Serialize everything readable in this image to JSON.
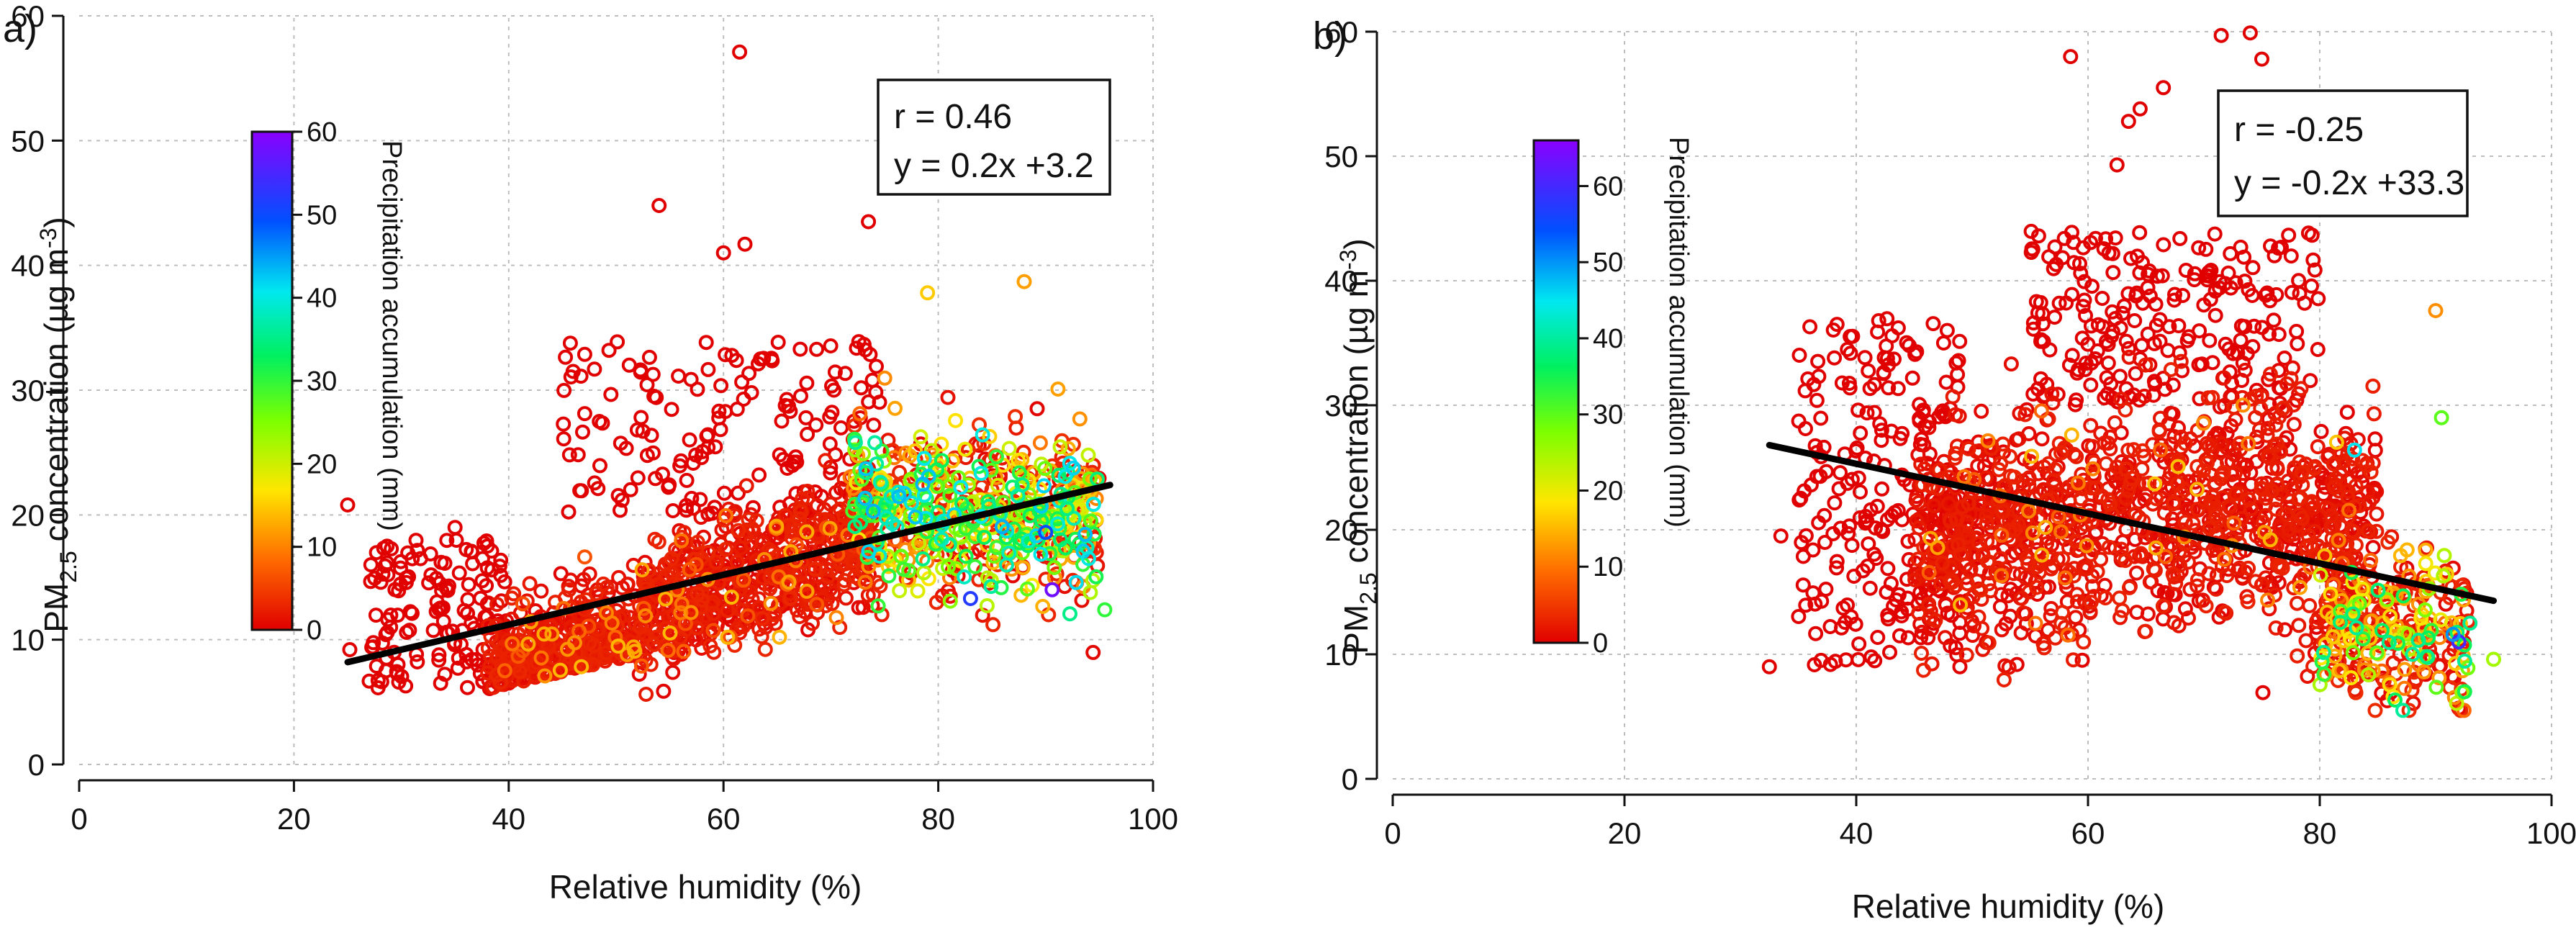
{
  "chart_data": [
    {
      "panel": "a)",
      "type": "scatter",
      "xlabel": "Relative humidity (%)",
      "ylabel_main": "PM",
      "ylabel_sub": "2.5",
      "ylabel_rest": " concentration (µg m",
      "ylabel_sup": "-3",
      "ylabel_end": ")",
      "xlim": [
        0,
        100
      ],
      "ylim": [
        0,
        60
      ],
      "xticks": [
        0,
        20,
        40,
        60,
        80,
        100
      ],
      "yticks": [
        0,
        10,
        20,
        30,
        40,
        50,
        60
      ],
      "grid": true,
      "stats": {
        "r": "r = 0.46",
        "equation": "y = 0.2x +3.2"
      },
      "fit": {
        "slope": 0.2,
        "intercept": 3.2,
        "x_range": [
          25,
          96
        ]
      },
      "colorbar": {
        "title": "Precipitation accumulation (mm)",
        "min": 0,
        "max": 60,
        "ticks": [
          0,
          10,
          20,
          30,
          40,
          50,
          60
        ]
      },
      "cloud_seed": 11,
      "outliers": [
        {
          "x": 25,
          "y": 20.8,
          "c": 0
        },
        {
          "x": 61.5,
          "y": 57.1,
          "c": 0
        },
        {
          "x": 54,
          "y": 44.8,
          "c": 0
        },
        {
          "x": 73.5,
          "y": 43.5,
          "c": 0
        },
        {
          "x": 60,
          "y": 41.0,
          "c": 0
        },
        {
          "x": 62,
          "y": 41.7,
          "c": 0
        },
        {
          "x": 88,
          "y": 38.7,
          "c": 12
        },
        {
          "x": 79,
          "y": 37.8,
          "c": 15
        },
        {
          "x": 46,
          "y": 31.5,
          "c": 0
        },
        {
          "x": 35,
          "y": 19.0,
          "c": 0
        },
        {
          "x": 25.2,
          "y": 9.2,
          "c": 0
        },
        {
          "x": 29,
          "y": 11.0,
          "c": 0
        },
        {
          "x": 90,
          "y": 18.6,
          "c": 50
        },
        {
          "x": 90.6,
          "y": 14.0,
          "c": 58
        },
        {
          "x": 95.5,
          "y": 12.4,
          "c": 30
        },
        {
          "x": 92,
          "y": 20.5,
          "c": 35
        },
        {
          "x": 83,
          "y": 13.3,
          "c": 52
        },
        {
          "x": 94,
          "y": 16.5,
          "c": 40
        }
      ]
    },
    {
      "panel": "b)",
      "type": "scatter",
      "xlabel": "Relative humidity (%)",
      "ylabel_main": "PM",
      "ylabel_sub": "2.5",
      "ylabel_rest": " concentration (µg m",
      "ylabel_sup": "-3",
      "ylabel_end": ")",
      "xlim": [
        0,
        100
      ],
      "ylim": [
        0,
        60
      ],
      "xticks": [
        0,
        20,
        40,
        60,
        80,
        100
      ],
      "yticks": [
        0,
        10,
        20,
        30,
        40,
        50,
        60
      ],
      "grid": true,
      "stats": {
        "r": "r = -0.25",
        "equation": "y = -0.2x +33.3"
      },
      "fit": {
        "slope": -0.2,
        "intercept": 33.3,
        "x_range": [
          32.5,
          95
        ]
      },
      "colorbar": {
        "title": "Precipitation accumulation (mm)",
        "min": 0,
        "max": 66,
        "ticks": [
          0,
          10,
          20,
          30,
          40,
          50,
          60
        ]
      },
      "cloud_seed": 29,
      "outliers": [
        {
          "x": 71.5,
          "y": 59.7,
          "c": 0
        },
        {
          "x": 74,
          "y": 59.9,
          "c": 0
        },
        {
          "x": 75,
          "y": 57.8,
          "c": 0
        },
        {
          "x": 58.5,
          "y": 58.0,
          "c": 0
        },
        {
          "x": 66.5,
          "y": 55.5,
          "c": 0
        },
        {
          "x": 64.5,
          "y": 53.8,
          "c": 0
        },
        {
          "x": 63.5,
          "y": 52.8,
          "c": 0
        },
        {
          "x": 62.5,
          "y": 49.3,
          "c": 0
        },
        {
          "x": 32.5,
          "y": 9.0,
          "c": 0
        },
        {
          "x": 33.5,
          "y": 19.5,
          "c": 0
        },
        {
          "x": 36,
          "y": 36.3,
          "c": 0
        },
        {
          "x": 90,
          "y": 37.6,
          "c": 12
        },
        {
          "x": 90.5,
          "y": 29.0,
          "c": 30
        },
        {
          "x": 83,
          "y": 26.4,
          "c": 45
        },
        {
          "x": 92,
          "y": 11.0,
          "c": 60
        },
        {
          "x": 91.5,
          "y": 11.6,
          "c": 50
        },
        {
          "x": 92.5,
          "y": 7.0,
          "c": 35
        },
        {
          "x": 95,
          "y": 9.6,
          "c": 25
        },
        {
          "x": 88,
          "y": 10.0,
          "c": 40
        }
      ]
    }
  ]
}
